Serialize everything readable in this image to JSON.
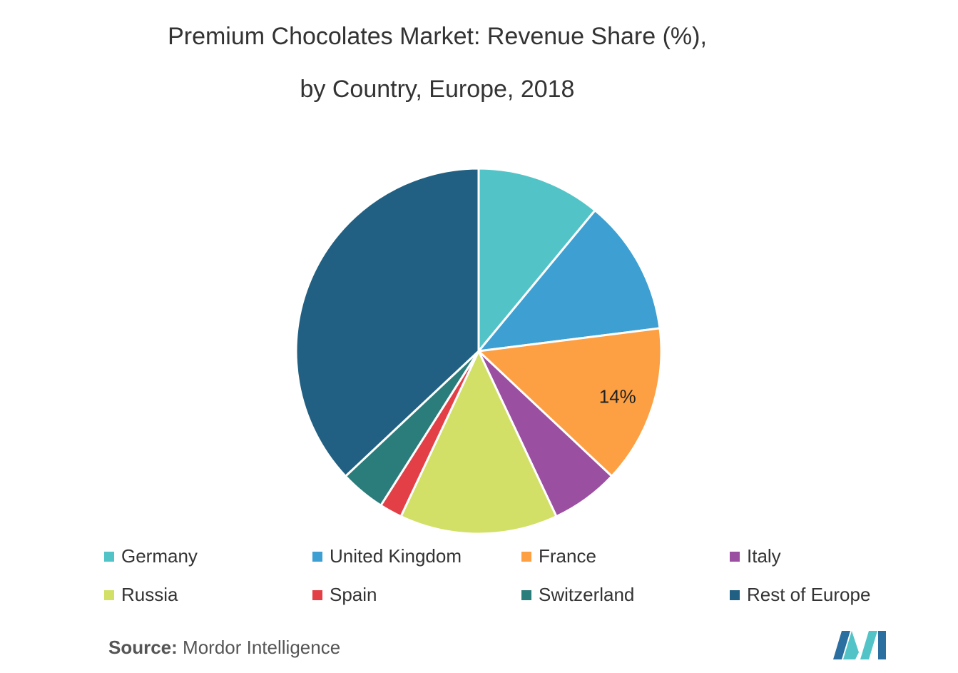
{
  "title_line1": "Premium Chocolates Market: Revenue Share (%),",
  "title_line2": "by Country, Europe, 2018",
  "chart_data": {
    "type": "pie",
    "title": "Premium Chocolates Market: Revenue Share (%), by Country, Europe, 2018",
    "slices": [
      {
        "label": "Germany",
        "value": 11,
        "color": "#52c4c7"
      },
      {
        "label": "United Kingdom",
        "value": 12,
        "color": "#3d9fd2"
      },
      {
        "label": "France",
        "value": 14,
        "color": "#fda043",
        "data_label": "14%"
      },
      {
        "label": "Italy",
        "value": 6,
        "color": "#9b4fa1"
      },
      {
        "label": "Russia",
        "value": 14,
        "color": "#d2e067"
      },
      {
        "label": "Spain",
        "value": 2,
        "color": "#e23f46"
      },
      {
        "label": "Switzerland",
        "value": 4,
        "color": "#2a7d7b"
      },
      {
        "label": "Rest of Europe",
        "value": 37,
        "color": "#216082"
      }
    ],
    "legend_position": "bottom"
  },
  "source_label": "Source:",
  "source_value": "Mordor Intelligence",
  "logo_icon": "mordor-intelligence-logo-icon"
}
